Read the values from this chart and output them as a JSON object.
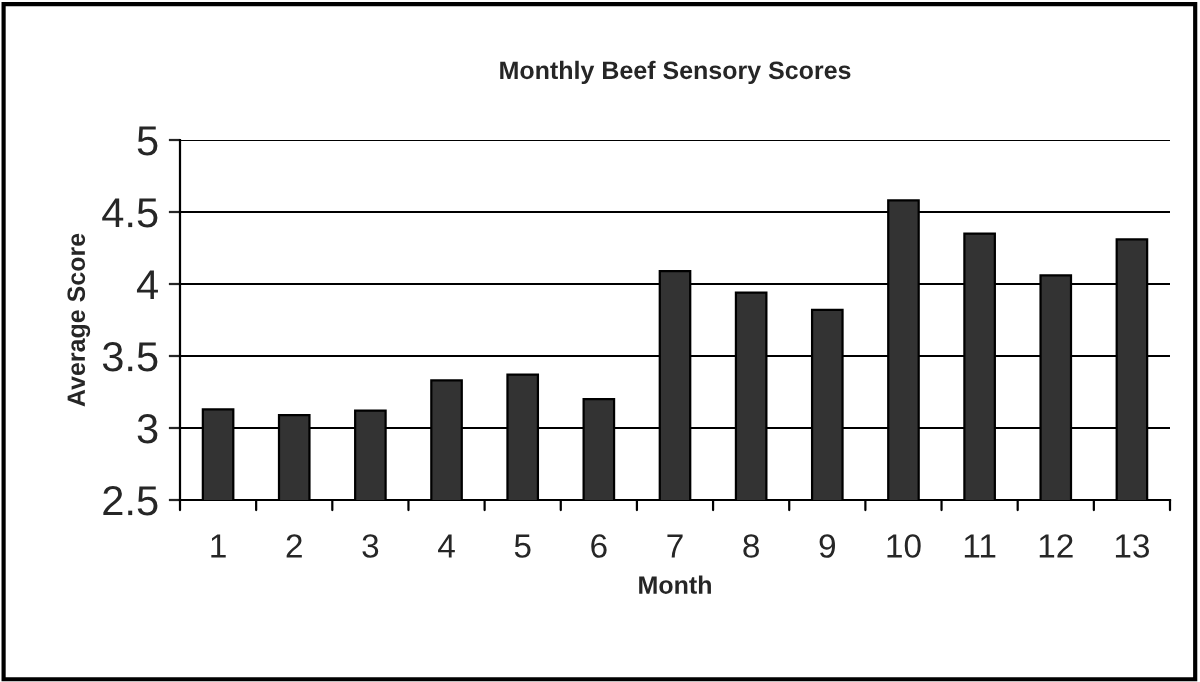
{
  "chart_data": {
    "type": "bar",
    "title": "Monthly Beef Sensory Scores",
    "xlabel": "Month",
    "ylabel": "Average Score",
    "categories": [
      "1",
      "2",
      "3",
      "4",
      "5",
      "6",
      "7",
      "8",
      "9",
      "10",
      "11",
      "12",
      "13"
    ],
    "values": [
      3.13,
      3.09,
      3.12,
      3.33,
      3.37,
      3.2,
      4.09,
      3.94,
      3.82,
      4.58,
      4.35,
      4.06,
      4.31
    ],
    "color": "#333333",
    "ylim": [
      2.5,
      5
    ],
    "yticks": [
      2.5,
      3,
      3.5,
      4,
      4.5,
      5
    ],
    "grid": "y",
    "legend": false
  }
}
